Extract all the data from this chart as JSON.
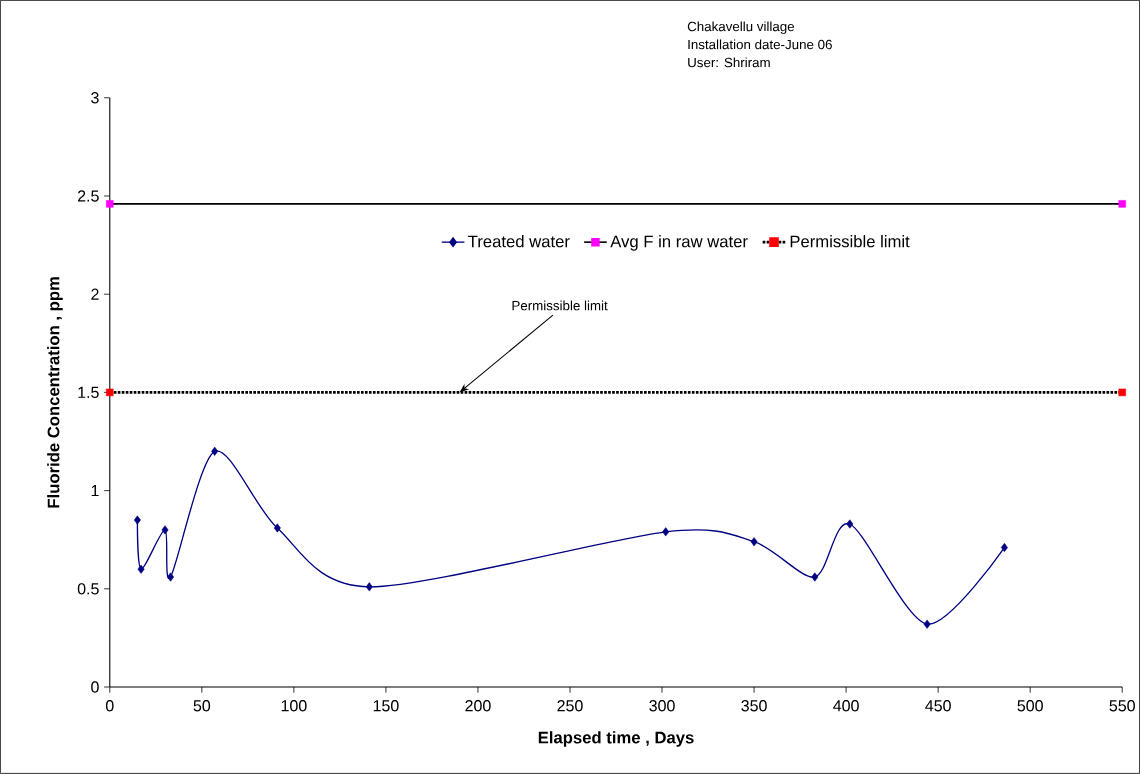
{
  "chart_data": {
    "type": "line",
    "xlabel": "Elapsed time , Days",
    "ylabel": "Fluoride Concentration , ppm",
    "xlim": [
      0,
      550
    ],
    "ylim": [
      0,
      3
    ],
    "xticks": [
      0,
      50,
      100,
      150,
      200,
      250,
      300,
      350,
      400,
      450,
      500,
      550
    ],
    "yticks": [
      0,
      0.5,
      1,
      1.5,
      2,
      2.5,
      3
    ],
    "grid": false,
    "legend": "top",
    "series": [
      {
        "name": "Treated water",
        "color": "#000080",
        "marker": "diamond",
        "line_style": "solid",
        "x": [
          15,
          17,
          30,
          33,
          57,
          91,
          141,
          302,
          350,
          383,
          402,
          444,
          486
        ],
        "values": [
          0.85,
          0.6,
          0.8,
          0.56,
          1.2,
          0.81,
          0.51,
          0.79,
          0.74,
          0.56,
          0.83,
          0.32,
          0.71
        ]
      },
      {
        "name": "Avg F in raw water",
        "color": "#000000",
        "colors": [
          "#ff00ff",
          "#ff00ff"
        ],
        "marker": "square",
        "line_style": "solid",
        "x": [
          0,
          550
        ],
        "values": [
          2.46,
          2.46
        ]
      },
      {
        "name": "Permissible limit",
        "color": "#000000",
        "colors": [
          "#ff0000",
          "#ff0000"
        ],
        "marker": "square",
        "line_style": "dotted",
        "x": [
          0,
          550
        ],
        "values": [
          1.5,
          1.5
        ]
      }
    ],
    "annotations": [
      {
        "text": "Permissible limit",
        "x": 190,
        "y": 1.5
      },
      "Chakavellu village",
      "Installation date-June 06",
      "User: Shriram"
    ]
  }
}
